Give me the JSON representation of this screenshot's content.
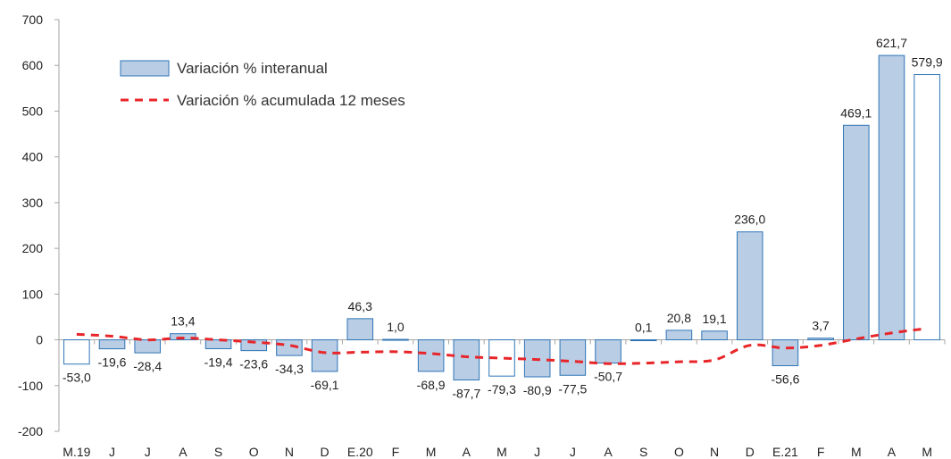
{
  "chart_data": {
    "type": "bar",
    "categories": [
      "M.19",
      "J",
      "J",
      "A",
      "S",
      "O",
      "N",
      "D",
      "E.20",
      "F",
      "M",
      "A",
      "M",
      "J",
      "J",
      "A",
      "S",
      "O",
      "N",
      "D",
      "E.21",
      "F",
      "M",
      "A",
      "M"
    ],
    "series": [
      {
        "name": "Variación % interanual",
        "type": "bar",
        "values": [
          -53.0,
          -19.6,
          -28.4,
          13.4,
          -19.4,
          -23.6,
          -34.3,
          -69.1,
          46.3,
          1.0,
          -68.9,
          -87.7,
          -79.3,
          -80.9,
          -77.5,
          -50.7,
          0.1,
          20.8,
          19.1,
          236.0,
          -56.6,
          3.7,
          469.1,
          621.7,
          579.9
        ],
        "labels": [
          "-53,0",
          "-19,6",
          "-28,4",
          "13,4",
          "-19,4",
          "-23,6",
          "-34,3",
          "-69,1",
          "46,3",
          "1,0",
          "-68,9",
          "-87,7",
          "-79,3",
          "-80,9",
          "-77,5",
          "-50,7",
          "0,1",
          "20,8",
          "19,1",
          "236,0",
          "-56,6",
          "3,7",
          "469,1",
          "621,7",
          "579,9"
        ],
        "hollow": [
          true,
          false,
          false,
          false,
          false,
          false,
          false,
          false,
          false,
          false,
          false,
          false,
          true,
          false,
          false,
          false,
          false,
          false,
          false,
          false,
          false,
          false,
          false,
          false,
          true
        ],
        "fill_color": "#b9cde5",
        "border_color": "#2e75b6"
      },
      {
        "name": "Variación % acumulada 12 meses",
        "type": "line",
        "style": "dashed",
        "color": "#e8262a",
        "values": [
          12,
          8,
          0,
          4,
          0,
          -5,
          -12,
          -28,
          -27,
          -26,
          -30,
          -37,
          -40,
          -43,
          -47,
          -52,
          -51,
          -48,
          -44,
          -12,
          -18,
          -12,
          2,
          15,
          25
        ]
      }
    ],
    "y_ticks": [
      "-200",
      "-100",
      "0",
      "100",
      "200",
      "300",
      "400",
      "500",
      "600",
      "700"
    ],
    "ylim": [
      -200,
      700
    ],
    "title": "",
    "xlabel": "",
    "ylabel": "",
    "legend_position": "top-left",
    "grid": false
  }
}
